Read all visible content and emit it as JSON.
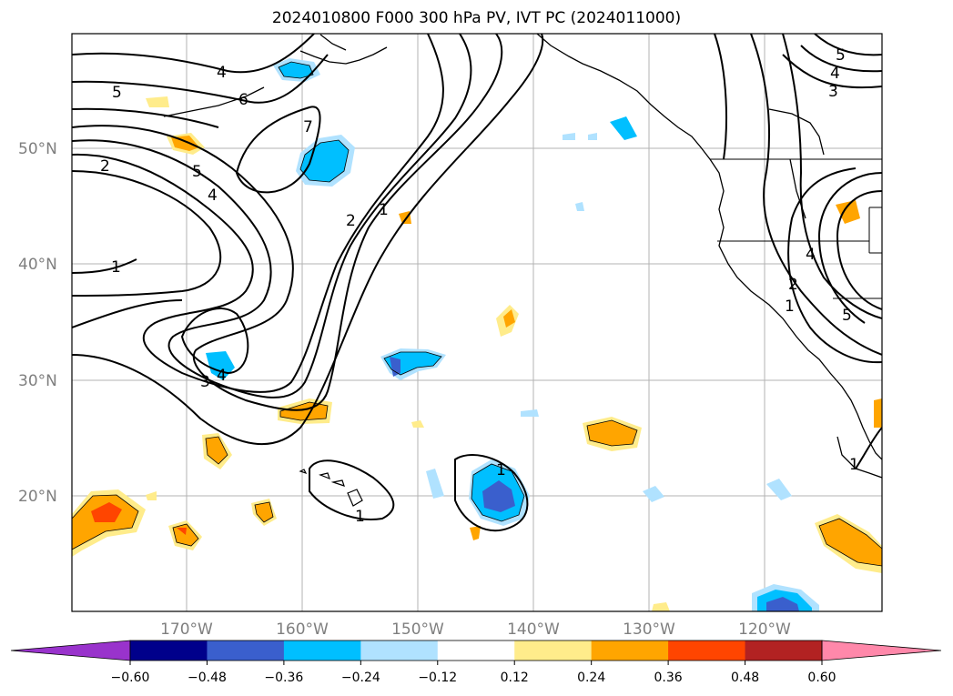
{
  "title": "2024010800 F000 300 hPa PV, IVT PC (2024011000)",
  "lat_labels": [
    "50°N",
    "40°N",
    "30°N",
    "20°N"
  ],
  "lon_labels": [
    "170°W",
    "160°W",
    "150°W",
    "140°W",
    "130°W",
    "120°W"
  ],
  "colorbar": {
    "ticks": [
      "−0.60",
      "−0.48",
      "−0.36",
      "−0.24",
      "−0.12",
      "0.12",
      "0.24",
      "0.36",
      "0.48",
      "0.60"
    ],
    "colors": [
      "#9933cc",
      "#00008b",
      "#3a5fcd",
      "#00bfff",
      "#b0e2ff",
      "#ffffff",
      "#ffec8b",
      "#ffa500",
      "#ff4500",
      "#b22222",
      "#ff88aa"
    ]
  },
  "contour_labels": [
    "4",
    "5",
    "6",
    "7",
    "2",
    "5",
    "4",
    "2",
    "1",
    "1",
    "3",
    "4",
    "1",
    "1",
    "5",
    "4",
    "3",
    "4",
    "2",
    "1",
    "5",
    "1"
  ]
}
